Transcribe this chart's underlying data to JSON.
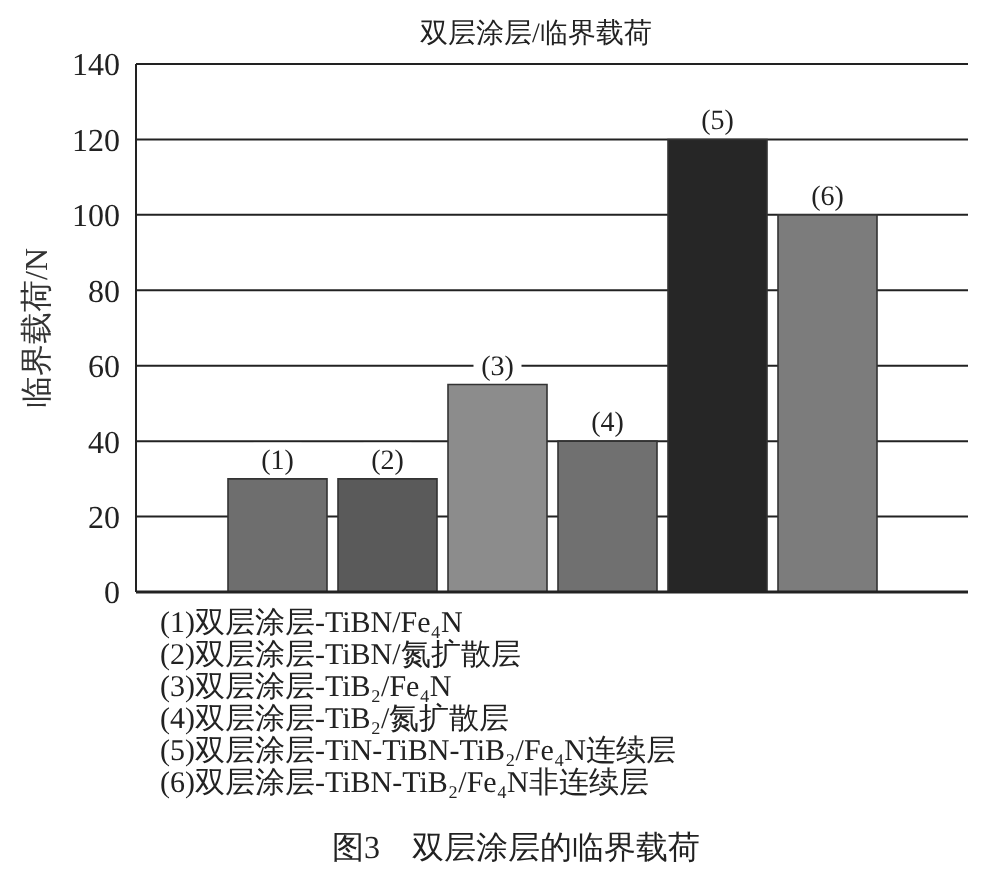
{
  "chart_data": {
    "type": "bar",
    "title": "双层涂层/临界载荷",
    "ylabel": "临界载荷/N",
    "categories": [
      "(1)",
      "(2)",
      "(3)",
      "(4)",
      "(5)",
      "(6)"
    ],
    "values": [
      30,
      30,
      55,
      40,
      120,
      100
    ],
    "colors": [
      "#6e6e6e",
      "#5a5a5a",
      "#8c8c8c",
      "#707070",
      "#262626",
      "#7c7c7c"
    ],
    "ylim": [
      0,
      140
    ],
    "yticks": [
      0,
      20,
      40,
      60,
      80,
      100,
      120,
      140
    ],
    "grid": "y",
    "legend": false,
    "annotations": [
      "(1)双层涂层-TiBN/Fe₄N",
      "(2)双层涂层-TiBN/氮扩散层",
      "(3)双层涂层-TiB₂/Fe₄N",
      "(4)双层涂层-TiB₂/氮扩散层",
      "(5)双层涂层-TiN-TiBN-TiB₂/Fe₄N连续层",
      "(6)双层涂层-TiBN-TiB₂/Fe₄N非连续层",
      "图3　双层涂层的临界载荷"
    ]
  }
}
